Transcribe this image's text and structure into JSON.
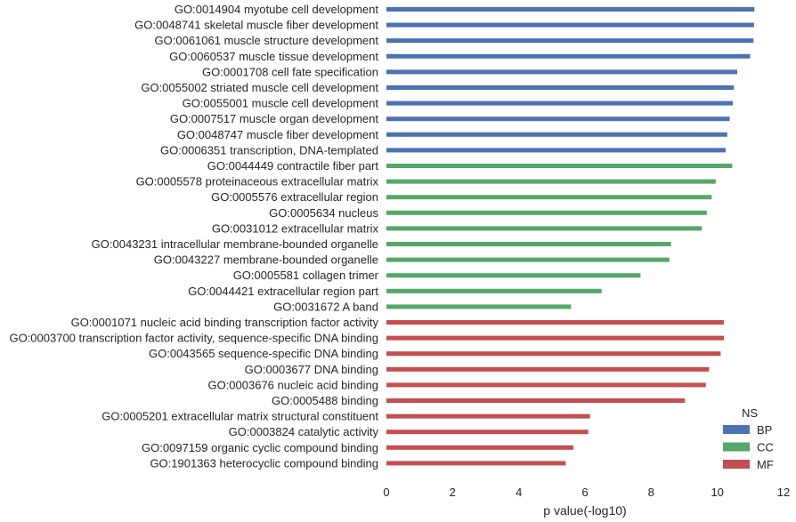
{
  "chart_data": {
    "type": "bar",
    "orientation": "horizontal",
    "xlabel": "p value(-log10)",
    "ylabel": "",
    "xlim": [
      0,
      12
    ],
    "xticks": [
      0,
      2,
      4,
      6,
      8,
      10,
      12
    ],
    "grid": false,
    "legend": {
      "title": "NS",
      "placement": "bottom-right",
      "entries": [
        {
          "name": "BP",
          "color": "#4c72b0"
        },
        {
          "name": "CC",
          "color": "#55a868"
        },
        {
          "name": "MF",
          "color": "#c44e52"
        }
      ]
    },
    "categories": [
      "GO:0014904 myotube cell development",
      "GO:0048741 skeletal muscle fiber development",
      "GO:0061061 muscle structure development",
      "GO:0060537 muscle tissue development",
      "GO:0001708 cell fate specification",
      "GO:0055002 striated muscle cell development",
      "GO:0055001 muscle cell development",
      "GO:0007517 muscle organ development",
      "GO:0048747 muscle fiber development",
      "GO:0006351 transcription, DNA-templated",
      "GO:0044449 contractile fiber part",
      "GO:0005578 proteinaceous extracellular matrix",
      "GO:0005576 extracellular region",
      "GO:0005634 nucleus",
      "GO:0031012 extracellular matrix",
      "GO:0043231 intracellular membrane-bounded organelle",
      "GO:0043227 membrane-bounded organelle",
      "GO:0005581 collagen trimer",
      "GO:0044421 extracellular region part",
      "GO:0031672 A band",
      "GO:0001071 nucleic acid binding transcription factor activity",
      "GO:0003700 transcription factor activity, sequence-specific DNA binding",
      "GO:0043565 sequence-specific DNA binding",
      "GO:0003677 DNA binding",
      "GO:0003676 nucleic acid binding",
      "GO:0005488 binding",
      "GO:0005201 extracellular matrix structural constituent",
      "GO:0003824 catalytic activity",
      "GO:0097159 organic cyclic compound binding",
      "GO:1901363 heterocyclic compound binding"
    ],
    "values": [
      11.12,
      11.11,
      11.09,
      10.99,
      10.6,
      10.5,
      10.47,
      10.37,
      10.3,
      10.25,
      10.45,
      9.95,
      9.83,
      9.68,
      9.53,
      8.6,
      8.55,
      7.68,
      6.5,
      5.58,
      10.2,
      10.2,
      10.1,
      9.75,
      9.65,
      9.02,
      6.15,
      6.1,
      5.65,
      5.42
    ],
    "groups": [
      "BP",
      "BP",
      "BP",
      "BP",
      "BP",
      "BP",
      "BP",
      "BP",
      "BP",
      "BP",
      "CC",
      "CC",
      "CC",
      "CC",
      "CC",
      "CC",
      "CC",
      "CC",
      "CC",
      "CC",
      "MF",
      "MF",
      "MF",
      "MF",
      "MF",
      "MF",
      "MF",
      "MF",
      "MF",
      "MF"
    ]
  }
}
